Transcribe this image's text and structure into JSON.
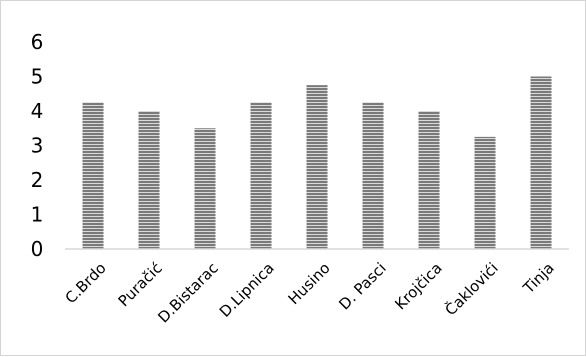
{
  "chart_data": {
    "type": "bar",
    "categories": [
      "C.Brdo",
      "Puračić",
      "D.Bistarac",
      "D.Lipnica",
      "Husino",
      "D. Pasci",
      "Krojčica",
      "Čaklovići",
      "Tinja"
    ],
    "values": [
      4.25,
      4.0,
      3.5,
      4.25,
      4.75,
      4.25,
      4.0,
      3.25,
      5.0
    ],
    "yticks": [
      "0",
      "1",
      "2",
      "3",
      "4",
      "5",
      "6"
    ],
    "ylim": [
      0,
      6
    ],
    "grid": false,
    "legend": "none",
    "bar_fill": "#7a7a7a",
    "bar_stripe": "#d9d9d9",
    "axis_color": "#d9d9d9",
    "title": "",
    "xlabel": "",
    "ylabel": ""
  }
}
